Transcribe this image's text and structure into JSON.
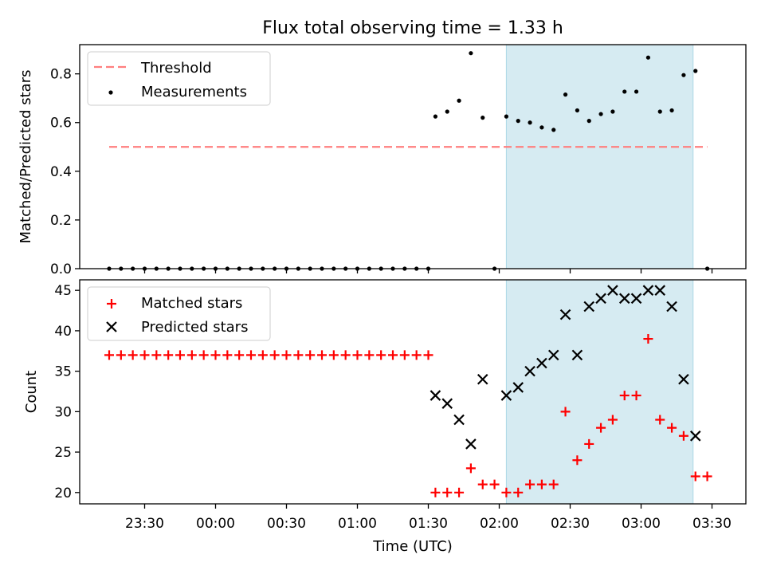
{
  "figure": {
    "title": "Flux total observing time = 1.33 h",
    "xlabel": "Time (UTC)",
    "colors": {
      "threshold": "#ff7f7f",
      "measurements": "#000000",
      "matched": "#ff0000",
      "predicted": "#000000",
      "shade": "#add8e6"
    }
  },
  "chart_data": [
    {
      "type": "scatter",
      "title": "Flux total observing time = 1.33 h",
      "xlabel": "",
      "ylabel": "Matched/Predicted stars",
      "x_ticklabels_visible": false,
      "ylim": [
        0,
        0.92
      ],
      "yticks": [
        0.0,
        0.2,
        0.4,
        0.6,
        0.8
      ],
      "yticklabels": [
        "0.0",
        "0.2",
        "0.4",
        "0.6",
        "0.8"
      ],
      "legend": {
        "position": "top-left",
        "entries": [
          "Threshold",
          "Measurements"
        ]
      },
      "shaded_region": {
        "from": "02:03",
        "to": "03:22"
      },
      "threshold": {
        "name": "Threshold",
        "value": 0.5,
        "from": "23:15",
        "to": "03:28",
        "style": "dashed"
      },
      "series": [
        {
          "name": "Measurements",
          "marker": "dot",
          "x": [
            "23:15",
            "23:20",
            "23:25",
            "23:30",
            "23:35",
            "23:40",
            "23:45",
            "23:50",
            "23:55",
            "00:00",
            "00:05",
            "00:10",
            "00:15",
            "00:20",
            "00:25",
            "00:30",
            "00:35",
            "00:40",
            "00:45",
            "00:50",
            "00:55",
            "01:00",
            "01:05",
            "01:10",
            "01:15",
            "01:20",
            "01:25",
            "01:30",
            "01:33",
            "01:38",
            "01:43",
            "01:48",
            "01:53",
            "01:58",
            "02:03",
            "02:08",
            "02:13",
            "02:18",
            "02:23",
            "02:28",
            "02:33",
            "02:38",
            "02:43",
            "02:48",
            "02:53",
            "02:58",
            "03:03",
            "03:08",
            "03:13",
            "03:18",
            "03:23",
            "03:28"
          ],
          "y": [
            0,
            0,
            0,
            0,
            0,
            0,
            0,
            0,
            0,
            0,
            0,
            0,
            0,
            0,
            0,
            0,
            0,
            0,
            0,
            0,
            0,
            0,
            0,
            0,
            0,
            0,
            0,
            0,
            0.625,
            0.645,
            0.69,
            0.885,
            0.62,
            0,
            0.625,
            0.607,
            0.6,
            0.58,
            0.57,
            0.715,
            0.65,
            0.607,
            0.635,
            0.645,
            0.727,
            0.727,
            0.867,
            0.645,
            0.65,
            0.795,
            0.812,
            0
          ]
        }
      ]
    },
    {
      "type": "scatter",
      "xlabel": "Time (UTC)",
      "ylabel": "Count",
      "ylim": [
        18.6,
        46.3
      ],
      "yticks": [
        20,
        25,
        30,
        35,
        40,
        45
      ],
      "yticklabels": [
        "20",
        "25",
        "30",
        "35",
        "40",
        "45"
      ],
      "xticks": [
        "23:30",
        "00:00",
        "00:30",
        "01:00",
        "01:30",
        "02:00",
        "02:30",
        "03:00",
        "03:30"
      ],
      "legend": {
        "position": "top-left",
        "entries": [
          "Matched stars",
          "Predicted stars"
        ]
      },
      "shaded_region": {
        "from": "02:03",
        "to": "03:22"
      },
      "series": [
        {
          "name": "Matched stars",
          "marker": "plus",
          "x": [
            "23:15",
            "23:20",
            "23:25",
            "23:30",
            "23:35",
            "23:40",
            "23:45",
            "23:50",
            "23:55",
            "00:00",
            "00:05",
            "00:10",
            "00:15",
            "00:20",
            "00:25",
            "00:30",
            "00:35",
            "00:40",
            "00:45",
            "00:50",
            "00:55",
            "01:00",
            "01:05",
            "01:10",
            "01:15",
            "01:20",
            "01:25",
            "01:30",
            "01:33",
            "01:38",
            "01:43",
            "01:48",
            "01:53",
            "01:58",
            "02:03",
            "02:08",
            "02:13",
            "02:18",
            "02:23",
            "02:28",
            "02:33",
            "02:38",
            "02:43",
            "02:48",
            "02:53",
            "02:58",
            "03:03",
            "03:08",
            "03:13",
            "03:18",
            "03:23",
            "03:28"
          ],
          "y": [
            37,
            37,
            37,
            37,
            37,
            37,
            37,
            37,
            37,
            37,
            37,
            37,
            37,
            37,
            37,
            37,
            37,
            37,
            37,
            37,
            37,
            37,
            37,
            37,
            37,
            37,
            37,
            37,
            20,
            20,
            20,
            23,
            21,
            21,
            20,
            20,
            21,
            21,
            21,
            30,
            24,
            26,
            28,
            29,
            32,
            32,
            39,
            29,
            28,
            27,
            22,
            22
          ]
        },
        {
          "name": "Predicted stars",
          "marker": "x",
          "x": [
            "01:33",
            "01:38",
            "01:43",
            "01:48",
            "01:53",
            "02:03",
            "02:08",
            "02:13",
            "02:18",
            "02:23",
            "02:28",
            "02:33",
            "02:38",
            "02:43",
            "02:48",
            "02:53",
            "02:58",
            "03:03",
            "03:08",
            "03:13",
            "03:18",
            "03:23"
          ],
          "y": [
            32,
            31,
            29,
            26,
            34,
            32,
            33,
            35,
            36,
            37,
            42,
            37,
            43,
            44,
            45,
            44,
            44,
            45,
            45,
            43,
            34,
            27
          ]
        }
      ]
    }
  ]
}
